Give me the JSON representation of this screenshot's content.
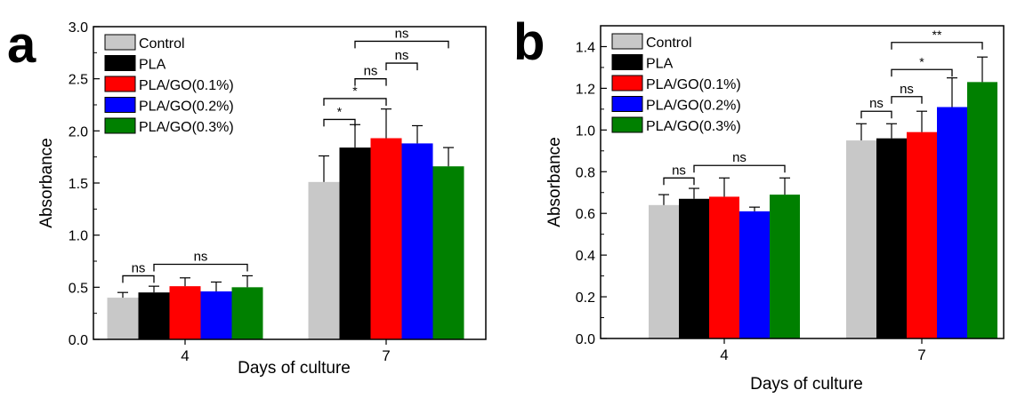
{
  "chart_data": [
    {
      "type": "bar",
      "panel_label": "a",
      "categories": [
        "4",
        "7"
      ],
      "series": [
        {
          "name": "Control",
          "values": [
            0.4,
            1.51
          ],
          "errors": [
            0.05,
            0.25
          ]
        },
        {
          "name": "PLA",
          "values": [
            0.45,
            1.84
          ],
          "errors": [
            0.06,
            0.22
          ]
        },
        {
          "name": "PLA/GO(0.1%)",
          "values": [
            0.51,
            1.93
          ],
          "errors": [
            0.08,
            0.28
          ]
        },
        {
          "name": "PLA/GO(0.2%)",
          "values": [
            0.46,
            1.88
          ],
          "errors": [
            0.09,
            0.17
          ]
        },
        {
          "name": "PLA/GO(0.3%)",
          "values": [
            0.5,
            1.66
          ],
          "errors": [
            0.11,
            0.18
          ]
        }
      ],
      "colors": [
        "#c8c8c8",
        "#000000",
        "#ff0000",
        "#0000ff",
        "#008000"
      ],
      "xlabel": "Days of culture",
      "ylabel": "Absorbance",
      "ylim": [
        0,
        3.0
      ],
      "yticks": [
        "0.0",
        "0.5",
        "1.0",
        "1.5",
        "2.0",
        "2.5",
        "3.0"
      ],
      "legend_position": "top-left",
      "significance": [
        {
          "group": 0,
          "from": 0,
          "to": 1,
          "label": "ns",
          "y": 0.61
        },
        {
          "group": 0,
          "from": 1,
          "to": 4,
          "label": "ns",
          "y": 0.72
        },
        {
          "group": 1,
          "from": 0,
          "to": 1,
          "label": "*",
          "y": 2.11
        },
        {
          "group": 1,
          "from": 0,
          "to": 2,
          "label": "*",
          "y": 2.31
        },
        {
          "group": 1,
          "from": 1,
          "to": 2,
          "label": "ns",
          "y": 2.5
        },
        {
          "group": 1,
          "from": 2,
          "to": 3,
          "label": "ns",
          "y": 2.65
        },
        {
          "group": 1,
          "from": 1,
          "to": 4,
          "label": "ns",
          "y": 2.86
        }
      ]
    },
    {
      "type": "bar",
      "panel_label": "b",
      "categories": [
        "4",
        "7"
      ],
      "series": [
        {
          "name": "Control",
          "values": [
            0.64,
            0.95
          ],
          "errors": [
            0.05,
            0.08
          ]
        },
        {
          "name": "PLA",
          "values": [
            0.67,
            0.96
          ],
          "errors": [
            0.05,
            0.07
          ]
        },
        {
          "name": "PLA/GO(0.1%)",
          "values": [
            0.68,
            0.99
          ],
          "errors": [
            0.09,
            0.1
          ]
        },
        {
          "name": "PLA/GO(0.2%)",
          "values": [
            0.61,
            1.11
          ],
          "errors": [
            0.02,
            0.14
          ]
        },
        {
          "name": "PLA/GO(0.3%)",
          "values": [
            0.69,
            1.23
          ],
          "errors": [
            0.08,
            0.12
          ]
        }
      ],
      "colors": [
        "#c8c8c8",
        "#000000",
        "#ff0000",
        "#0000ff",
        "#008000"
      ],
      "xlabel": "Days of culture",
      "ylabel": "Absorbance",
      "ylim": [
        0,
        1.5
      ],
      "yticks": [
        "0.0",
        "0.2",
        "0.4",
        "0.6",
        "0.8",
        "1.0",
        "1.2",
        "1.4"
      ],
      "legend_position": "top-left",
      "significance": [
        {
          "group": 0,
          "from": 0,
          "to": 1,
          "label": "ns",
          "y": 0.77
        },
        {
          "group": 0,
          "from": 1,
          "to": 4,
          "label": "ns",
          "y": 0.83
        },
        {
          "group": 1,
          "from": 0,
          "to": 1,
          "label": "ns",
          "y": 1.09
        },
        {
          "group": 1,
          "from": 1,
          "to": 2,
          "label": "ns",
          "y": 1.16
        },
        {
          "group": 1,
          "from": 1,
          "to": 3,
          "label": "*",
          "y": 1.29
        },
        {
          "group": 1,
          "from": 1,
          "to": 4,
          "label": "**",
          "y": 1.42
        }
      ]
    }
  ]
}
